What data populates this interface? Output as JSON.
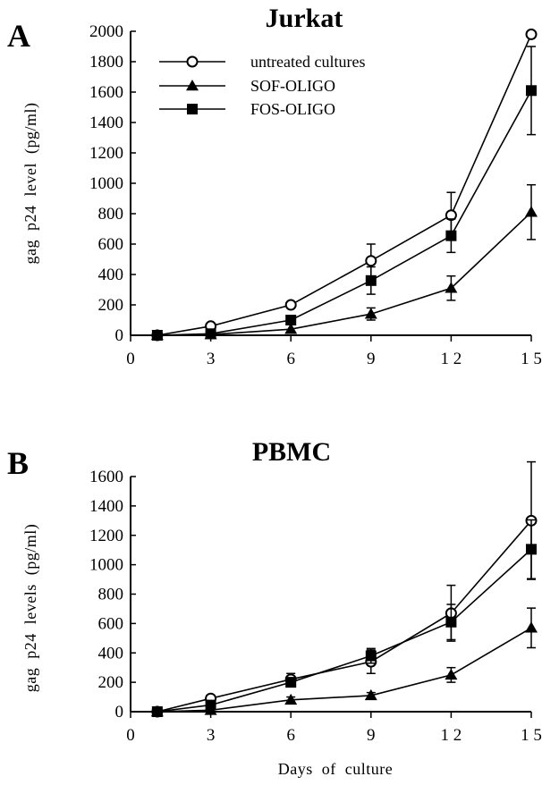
{
  "chart_data": [
    {
      "type": "line",
      "panel": "A",
      "title": "Jurkat",
      "xlabel": "",
      "ylabel": "gag  p24  level  (pg/ml)",
      "xlim": [
        0,
        15
      ],
      "ylim": [
        0,
        2000
      ],
      "x_ticks": [
        "0",
        "3",
        "6",
        "9",
        "1 2",
        "1 5"
      ],
      "y_ticks": [
        "0",
        "200",
        "400",
        "600",
        "800",
        "1000",
        "1200",
        "1400",
        "1600",
        "1800",
        "2000"
      ],
      "grid": false,
      "legend_position": "top-left",
      "x": [
        1,
        3,
        6,
        9,
        12,
        15
      ],
      "series": [
        {
          "name": "untreated cultures",
          "marker": "open-circle",
          "values": [
            0,
            60,
            200,
            490,
            790,
            1980
          ],
          "error": [
            null,
            null,
            null,
            110,
            150,
            null
          ]
        },
        {
          "name": "SOF-OLIGO",
          "marker": "filled-triangle",
          "values": [
            0,
            5,
            40,
            140,
            310,
            810
          ],
          "error": [
            null,
            null,
            null,
            40,
            80,
            180
          ]
        },
        {
          "name": "FOS-OLIGO",
          "marker": "filled-square",
          "values": [
            0,
            10,
            100,
            360,
            655,
            1610
          ],
          "error": [
            null,
            null,
            30,
            90,
            110,
            290
          ]
        }
      ]
    },
    {
      "type": "line",
      "panel": "B",
      "title": "PBMC",
      "xlabel": "Days  of  culture",
      "ylabel": "gag  p24  levels  (pg/ml)",
      "xlim": [
        0,
        15
      ],
      "ylim": [
        0,
        1600
      ],
      "x_ticks": [
        "0",
        "3",
        "6",
        "9",
        "1 2",
        "1 5"
      ],
      "y_ticks": [
        "0",
        "200",
        "400",
        "600",
        "800",
        "1000",
        "1200",
        "1400",
        "1600"
      ],
      "grid": false,
      "legend_position": "",
      "x": [
        1,
        3,
        6,
        9,
        12,
        15
      ],
      "series": [
        {
          "name": "untreated cultures",
          "marker": "open-circle",
          "values": [
            0,
            90,
            220,
            340,
            670,
            1300
          ],
          "error": [
            null,
            null,
            40,
            80,
            190,
            400
          ]
        },
        {
          "name": "SOF-OLIGO",
          "marker": "filled-triangle",
          "values": [
            0,
            10,
            80,
            110,
            250,
            570
          ],
          "error": [
            null,
            null,
            20,
            20,
            50,
            135
          ]
        },
        {
          "name": "FOS-OLIGO",
          "marker": "filled-square",
          "values": [
            0,
            45,
            200,
            380,
            610,
            1105
          ],
          "error": [
            null,
            null,
            30,
            50,
            120,
            200
          ]
        }
      ]
    }
  ]
}
